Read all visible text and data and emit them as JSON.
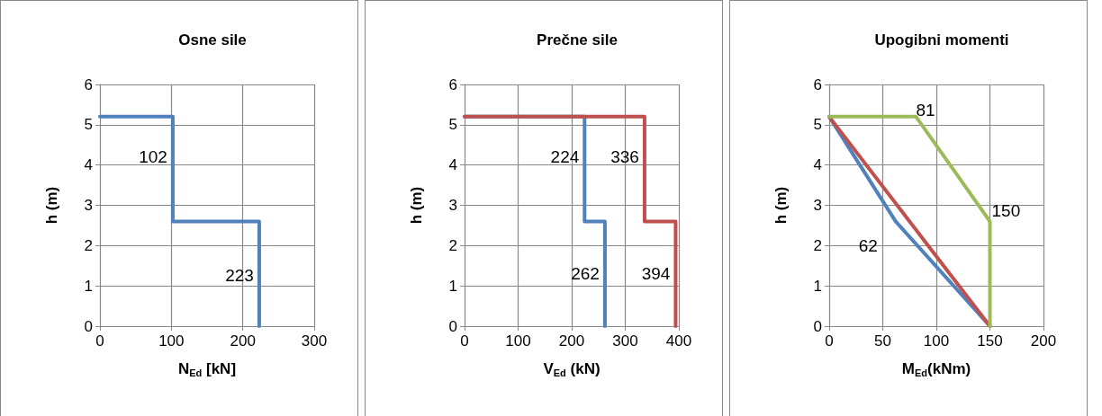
{
  "chart_data": [
    {
      "type": "line",
      "title": "Osne sile",
      "xlabel": "N$_{Ed}$ [kN]",
      "ylabel": "h (m)",
      "xlim": [
        0,
        300
      ],
      "xticks": [
        0,
        100,
        200,
        300
      ],
      "ylim": [
        0,
        6
      ],
      "yticks": [
        0,
        1,
        2,
        3,
        4,
        5,
        6
      ],
      "grid": true,
      "marker": "none",
      "line_style": "solid",
      "series": [
        {
          "color": "#4f81bd",
          "x": [
            0,
            102,
            102,
            223,
            223
          ],
          "values": [
            5.2,
            5.2,
            2.6,
            2.6,
            0
          ]
        }
      ],
      "annotations": [
        {
          "text": "102",
          "x": 102,
          "y": 4.2
        },
        {
          "text": "223",
          "x": 223,
          "y": 1.25
        }
      ]
    },
    {
      "type": "line",
      "title": "Prečne sile",
      "xlabel": "V$_{Ed}$ (kN)",
      "ylabel": "h (m)",
      "xlim": [
        0,
        400
      ],
      "xticks": [
        0,
        100,
        200,
        300,
        400
      ],
      "ylim": [
        0,
        6
      ],
      "yticks": [
        0,
        1,
        2,
        3,
        4,
        5,
        6
      ],
      "grid": true,
      "marker": "none",
      "line_style": "solid",
      "series": [
        {
          "color": "#4f81bd",
          "x": [
            0,
            224,
            224,
            262,
            262
          ],
          "values": [
            5.2,
            5.2,
            2.6,
            2.6,
            0
          ]
        },
        {
          "color": "#c0504d",
          "x": [
            0,
            336,
            336,
            394,
            394
          ],
          "values": [
            5.2,
            5.2,
            2.6,
            2.6,
            0
          ]
        }
      ],
      "annotations": [
        {
          "text": "224",
          "x": 224,
          "y": 4.2
        },
        {
          "text": "336",
          "x": 336,
          "y": 4.2
        },
        {
          "text": "262",
          "x": 262,
          "y": 1.3
        },
        {
          "text": "394",
          "x": 394,
          "y": 1.3
        }
      ]
    },
    {
      "type": "line",
      "title": "Upogibni momenti",
      "xlabel": "M$_{Ed}$(kNm)",
      "ylabel": "h (m)",
      "xlim": [
        0,
        200
      ],
      "xticks": [
        0,
        50,
        100,
        150,
        200
      ],
      "ylim": [
        0,
        6
      ],
      "yticks": [
        0,
        1,
        2,
        3,
        4,
        5,
        6
      ],
      "grid": true,
      "marker": "none",
      "line_style": "solid",
      "series": [
        {
          "color": "#4f81bd",
          "x": [
            0,
            62,
            150
          ],
          "values": [
            5.2,
            2.6,
            0
          ]
        },
        {
          "color": "#c0504d",
          "x": [
            0,
            150
          ],
          "values": [
            5.2,
            0
          ]
        },
        {
          "color": "#9bbb59",
          "x": [
            0,
            81,
            150,
            150
          ],
          "values": [
            5.2,
            5.2,
            2.6,
            0
          ]
        }
      ],
      "annotations": [
        {
          "text": "81",
          "x": 81,
          "y": 5.2
        },
        {
          "text": "150",
          "x": 150,
          "y": 2.6
        },
        {
          "text": "62",
          "x": 62,
          "y": 2.6
        }
      ]
    }
  ]
}
